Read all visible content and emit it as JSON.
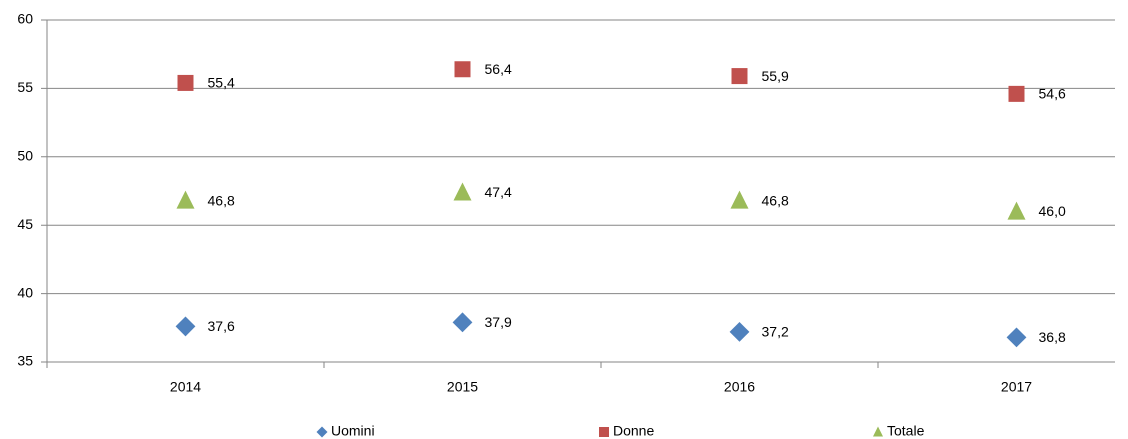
{
  "chart_data": {
    "type": "scatter",
    "categories": [
      "2014",
      "2015",
      "2016",
      "2017"
    ],
    "series": [
      {
        "name": "Uomini",
        "color": "#4f81bd",
        "marker": "diamond",
        "values": [
          37.6,
          37.9,
          37.2,
          36.8
        ],
        "value_labels": [
          "37,6",
          "37,9",
          "37,2",
          "36,8"
        ]
      },
      {
        "name": "Donne",
        "color": "#c0504d",
        "marker": "square",
        "values": [
          55.4,
          56.4,
          55.9,
          54.6
        ],
        "value_labels": [
          "55,4",
          "56,4",
          "55,9",
          "54,6"
        ]
      },
      {
        "name": "Totale",
        "color": "#9bbb59",
        "marker": "triangle",
        "values": [
          46.8,
          47.4,
          46.8,
          46.0
        ],
        "value_labels": [
          "46,8",
          "47,4",
          "46,8",
          "46,0"
        ]
      }
    ],
    "ylim": [
      35,
      60
    ],
    "yticks": [
      35,
      40,
      45,
      50,
      55,
      60
    ],
    "grid": true,
    "legend": "bottom"
  }
}
